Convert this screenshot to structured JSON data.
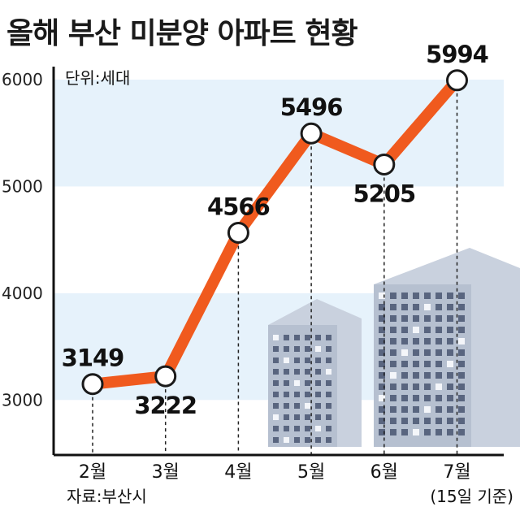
{
  "title": "올해 부산 미분양 아파트 현황",
  "unit_label": "단위:세대",
  "source": "자료:부산시",
  "footnote": "(15일 기준)",
  "colors": {
    "line": "#f05a1e",
    "band": "#e6f2fb",
    "building": "#bcc6d6",
    "point_fill": "#ffffff",
    "point_stroke": "#1a1a1a"
  },
  "chart_data": {
    "type": "line",
    "title": "올해 부산 미분양 아파트 현황",
    "categories": [
      "2월",
      "3월",
      "4월",
      "5월",
      "6월",
      "7월"
    ],
    "values": [
      3149,
      3222,
      4566,
      5496,
      5205,
      5994
    ],
    "data_labels": [
      "3149",
      "3222",
      "4566",
      "5496",
      "5205",
      "5994"
    ],
    "y_ticks": [
      "6000",
      "5000",
      "4000",
      "3000"
    ],
    "ylim": [
      2500,
      6000
    ],
    "ylabel": "",
    "xlabel": "",
    "grid": false
  }
}
